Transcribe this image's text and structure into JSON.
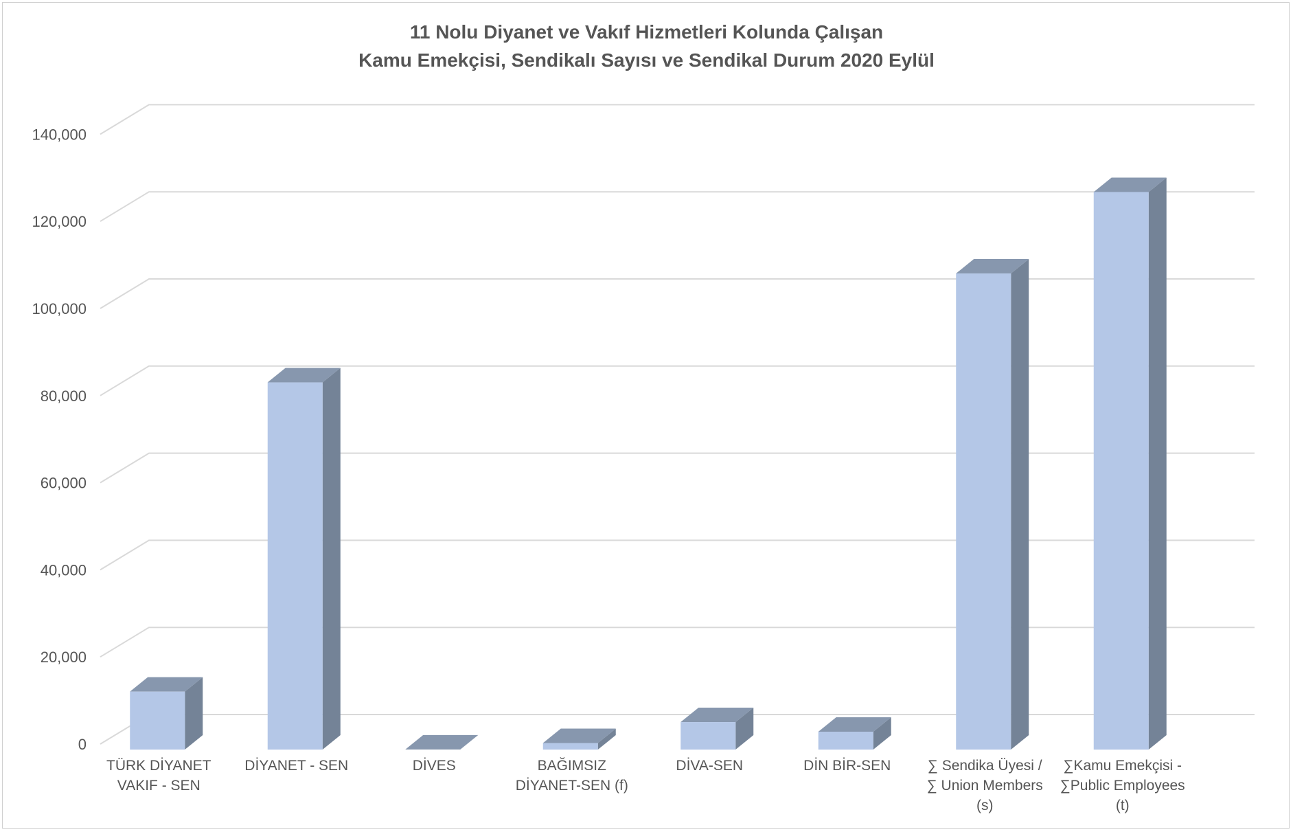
{
  "chart_data": {
    "type": "bar",
    "title_lines": [
      "11 Nolu Diyanet ve Vakıf Hizmetleri Kolunda Çalışan",
      "Kamu Emekçisi, Sendikalı Sayısı ve Sendikal Durum   2020 Eylül"
    ],
    "categories": [
      [
        "TÜRK DİYANET",
        "VAKIF - SEN"
      ],
      [
        "DİYANET - SEN"
      ],
      [
        "DİVES"
      ],
      [
        "BAĞIMSIZ",
        "DİYANET-SEN (f)"
      ],
      [
        "DİVA-SEN"
      ],
      [
        "DİN BİR-SEN"
      ],
      [
        "∑ Sendika Üyesi /",
        "∑ Union Members",
        "(s)"
      ],
      [
        "∑Kamu Emekçisi -",
        "∑Public Employees",
        "(t)"
      ]
    ],
    "values": [
      13300,
      84300,
      20,
      1500,
      6300,
      4100,
      109300,
      128000
    ],
    "ylim": [
      0,
      140000
    ],
    "ytick_values": [
      0,
      20000,
      40000,
      60000,
      80000,
      100000,
      120000,
      140000
    ],
    "ytick_labels": [
      "0",
      "20,000",
      "40,000",
      "60,000",
      "80,000",
      "100,000",
      "120,000",
      "140,000"
    ],
    "xlabel": "",
    "ylabel": "",
    "grid": true,
    "style": "3d-column",
    "colors": {
      "bar_front": "#b4c7e7",
      "bar_side": "#748397",
      "bar_top": "#8797ae",
      "grid": "#d9d9d9",
      "text": "#555555"
    }
  }
}
